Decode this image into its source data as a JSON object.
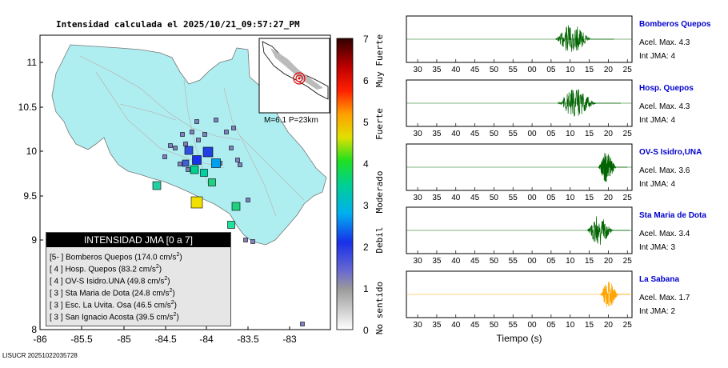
{
  "title": "Intensidad calculada el 2025/10/21_09:57:27_PM",
  "map": {
    "lat_ticks": [
      "11",
      "10.5",
      "10",
      "9.5",
      "9",
      "8"
    ],
    "lon_ticks": [
      "-86",
      "-85.5",
      "-85",
      "-84.5",
      "-84",
      "-83.5",
      "-83"
    ],
    "inset_label": "M=6.1 P=23km",
    "land_color": "#aeeef0"
  },
  "colorbar": {
    "ticks": [
      "7",
      "6",
      "5",
      "4",
      "3",
      "2",
      "1",
      "0"
    ],
    "labels": [
      "Muy Fuerte",
      "Fuerte",
      "Moderado",
      "Debil",
      "No sentido"
    ]
  },
  "legend": {
    "header": "INTENSIDAD JMA [0 a 7]",
    "rows": [
      {
        "level": "[5- ]",
        "station": "Bomberos Quepos",
        "value": "(174.0 cm/s",
        "unit_sup": "2",
        "close": ")"
      },
      {
        "level": "[ 4 ]",
        "station": "Hosp. Quepos",
        "value": "(83.2 cm/s",
        "unit_sup": "2",
        "close": ")"
      },
      {
        "level": "[ 4 ]",
        "station": "OV-S Isidro.UNA",
        "value": "(49.8 cm/s",
        "unit_sup": "2",
        "close": ")"
      },
      {
        "level": "[ 3 ]",
        "station": "Sta Maria de Dota",
        "value": "(24.8 cm/s",
        "unit_sup": "2",
        "close": ")"
      },
      {
        "level": "[ 3 ]",
        "station": "Esc. La Uvita. Osa",
        "value": "(46.5 cm/s",
        "unit_sup": "2",
        "close": ")"
      },
      {
        "level": "[ 3 ]",
        "station": "San Ignacio Acosta",
        "value": "(39.5 cm/s",
        "unit_sup": "2",
        "close": ")"
      }
    ]
  },
  "waveforms": {
    "time_ticks": [
      "30",
      "35",
      "40",
      "45",
      "50",
      "55",
      "00",
      "05",
      "10",
      "15",
      "20",
      "25"
    ],
    "xlabel": "Tiempo (s)",
    "stations": [
      {
        "name": "Bomberos Quepos",
        "accel": "Acel. Max. 4.3",
        "int": "Int JMA: 4",
        "color": "#006400",
        "start": 0.66,
        "end": 0.92,
        "amp": 1.0
      },
      {
        "name": "Hosp. Quepos",
        "accel": "Acel. Max. 4.3",
        "int": "Int JMA: 4",
        "color": "#006400",
        "start": 0.67,
        "end": 0.95,
        "amp": 0.95
      },
      {
        "name": "OV-S Isidro,UNA",
        "accel": "Acel. Max. 3.6",
        "int": "Int JMA: 4",
        "color": "#006400",
        "start": 0.85,
        "end": 0.98,
        "amp": 1.0
      },
      {
        "name": "Sta Maria de Dota",
        "accel": "Acel. Max. 3.4",
        "int": "Int JMA: 3",
        "color": "#006400",
        "start": 0.8,
        "end": 0.99,
        "amp": 1.0
      },
      {
        "name": "La Sabana",
        "accel": "Acel. Max. 1.7",
        "int": "Int JMA: 2",
        "color": "#ffa500",
        "start": 0.86,
        "end": 0.99,
        "amp": 0.9
      }
    ]
  },
  "footer": "LISUCR 20251022035728"
}
